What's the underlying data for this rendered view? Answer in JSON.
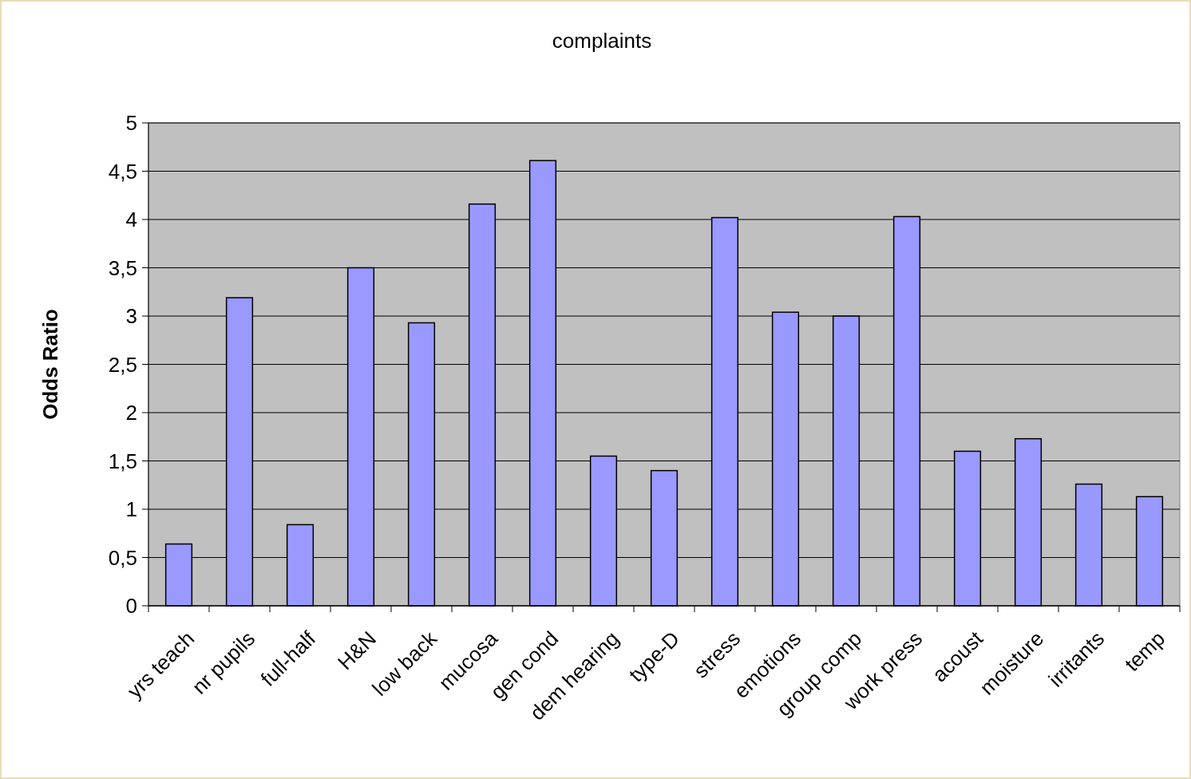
{
  "chart_data": {
    "type": "bar",
    "title": "complaints",
    "ylabel": "Odds Ratio",
    "categories": [
      "yrs teach",
      "nr pupils",
      "full-half",
      "H&N",
      "low back",
      "mucosa",
      "gen cond",
      "dem hearing",
      "type-D",
      "stress",
      "emotions",
      "group comp",
      "work press",
      "acoust",
      "moisture",
      "irritants",
      "temp"
    ],
    "values": [
      0.64,
      3.19,
      0.84,
      3.5,
      2.93,
      4.16,
      4.61,
      1.55,
      1.4,
      4.02,
      3.04,
      3.0,
      4.03,
      1.6,
      1.73,
      1.26,
      1.13
    ],
    "color": "#9999ff",
    "ylim": [
      0,
      5
    ],
    "yticks": [
      0,
      {
        "value": 0.5,
        "label": "0,5"
      },
      1,
      {
        "value": 1.5,
        "label": "1,5"
      },
      2,
      {
        "value": 2.5,
        "label": "2,5"
      },
      3,
      {
        "value": 3.5,
        "label": "3,5"
      },
      4,
      {
        "value": 4.5,
        "label": "4,5"
      },
      5
    ],
    "grid": "y"
  }
}
